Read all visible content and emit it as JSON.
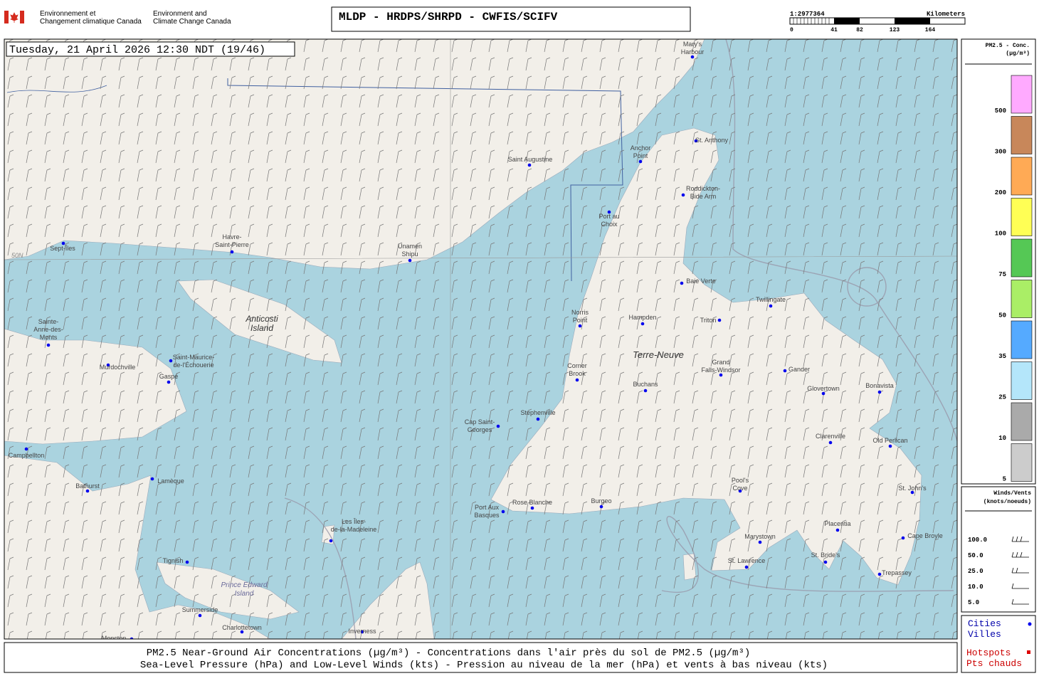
{
  "header": {
    "agency_fr": [
      "Environnement et",
      "Changement climatique Canada"
    ],
    "agency_en": [
      "Environment and",
      "Climate Change Canada"
    ],
    "title": "MLDP - HRDPS/SHRPD - CWFIS/SCIFV"
  },
  "scale": {
    "ratio": "1:2977364",
    "unit": "Kilometers",
    "ticks": [
      "0",
      "41",
      "82",
      "123",
      "164"
    ]
  },
  "timestamp": "Tuesday, 21 April 2026 12:30 NDT (19/46)",
  "map_labels": [
    "Anticosti",
    "Island",
    "Terre-Neuve",
    "Prince Edward",
    "Island",
    "50N"
  ],
  "cities": [
    {
      "label": [
        "Mary's",
        "Harbour"
      ]
    },
    {
      "label": [
        "St. Anthony"
      ]
    },
    {
      "label": [
        "Anchor",
        "Point"
      ]
    },
    {
      "label": [
        "Saint Augustine"
      ]
    },
    {
      "label": [
        "Roddickton-",
        "Bide Arm"
      ]
    },
    {
      "label": [
        "Port au",
        "Choix"
      ]
    },
    {
      "label": [
        "Havre-",
        "Saint-Pierre"
      ]
    },
    {
      "label": [
        "Unamen",
        "Shipu"
      ]
    },
    {
      "label": [
        "Sept-Îles"
      ]
    },
    {
      "label": [
        "Baie Verte"
      ]
    },
    {
      "label": [
        "Twillingate"
      ]
    },
    {
      "label": [
        "Norris",
        "Point"
      ]
    },
    {
      "label": [
        "Hampden"
      ]
    },
    {
      "label": [
        "Triton"
      ]
    },
    {
      "label": [
        "Sainte-",
        "Anne-des-",
        "Monts"
      ]
    },
    {
      "label": [
        "Murdochville"
      ]
    },
    {
      "label": [
        "Saint-Maurice-",
        "de-l'Échouerie"
      ]
    },
    {
      "label": [
        "Gaspé"
      ]
    },
    {
      "label": [
        "Corner",
        "Brook"
      ]
    },
    {
      "label": [
        "Grand",
        "Falls-Windsor"
      ]
    },
    {
      "label": [
        "Gander"
      ]
    },
    {
      "label": [
        "Glovertown"
      ]
    },
    {
      "label": [
        "Bonavista"
      ]
    },
    {
      "label": [
        "Buchans"
      ]
    },
    {
      "label": [
        "Stephenville"
      ]
    },
    {
      "label": [
        "Cap Saint-",
        "Georges"
      ]
    },
    {
      "label": [
        "Clarenville"
      ]
    },
    {
      "label": [
        "Old Perlican"
      ]
    },
    {
      "label": [
        "Campbellton"
      ]
    },
    {
      "label": [
        "Bathurst"
      ]
    },
    {
      "label": [
        "Lamèque"
      ]
    },
    {
      "label": [
        "Pool's",
        "Cove"
      ]
    },
    {
      "label": [
        "St. John's"
      ]
    },
    {
      "label": [
        "Port Aux",
        "Basques"
      ]
    },
    {
      "label": [
        "Rose Blanche"
      ]
    },
    {
      "label": [
        "Burgeo"
      ]
    },
    {
      "label": [
        "Les Îles-",
        "de-la-Madeleine"
      ]
    },
    {
      "label": [
        "Placentia"
      ]
    },
    {
      "label": [
        "Marystown"
      ]
    },
    {
      "label": [
        "Cape Broyle"
      ]
    },
    {
      "label": [
        "St. Bride's"
      ]
    },
    {
      "label": [
        "St. Lawrence"
      ]
    },
    {
      "label": [
        "Tignish"
      ]
    },
    {
      "label": [
        "Trepassey"
      ]
    },
    {
      "label": [
        "Summerside"
      ]
    },
    {
      "label": [
        "Charlottetown"
      ]
    },
    {
      "label": [
        "Inverness"
      ]
    },
    {
      "label": [
        "Moncton"
      ]
    }
  ],
  "legend": {
    "title": [
      "PM2.5 - Conc.",
      "(µg/m³)"
    ],
    "classes": [
      {
        "label": "500",
        "color": "#ffaaff"
      },
      {
        "label": "300",
        "color": "#c8875a"
      },
      {
        "label": "200",
        "color": "#ffaa55"
      },
      {
        "label": "100",
        "color": "#ffff55"
      },
      {
        "label": "75",
        "color": "#55c855"
      },
      {
        "label": "50",
        "color": "#aaee66"
      },
      {
        "label": "35",
        "color": "#55aaff"
      },
      {
        "label": "25",
        "color": "#b4e6fa"
      },
      {
        "label": "10",
        "color": "#aaaaaa"
      },
      {
        "label": "5",
        "color": "#cccccc"
      }
    ]
  },
  "wind_legend": {
    "title": [
      "Winds/Vents",
      "(knots/noeuds)"
    ],
    "labels": [
      "100.0",
      "50.0",
      "25.0",
      "10.0",
      "5.0"
    ]
  },
  "points_legend": {
    "cities": [
      "Cities",
      "Villes"
    ],
    "hotspots": [
      "Hotspots",
      "Pts chauds"
    ]
  },
  "footer": [
    "PM2.5 Near-Ground Air Concentrations (µg/m³) - Concentrations dans l'air près du sol de PM2.5 (µg/m³)",
    "Sea-Level Pressure (hPa) and Low-Level Winds (kts) - Pression au niveau de la mer (hPa) et vents à bas niveau (kts)"
  ]
}
